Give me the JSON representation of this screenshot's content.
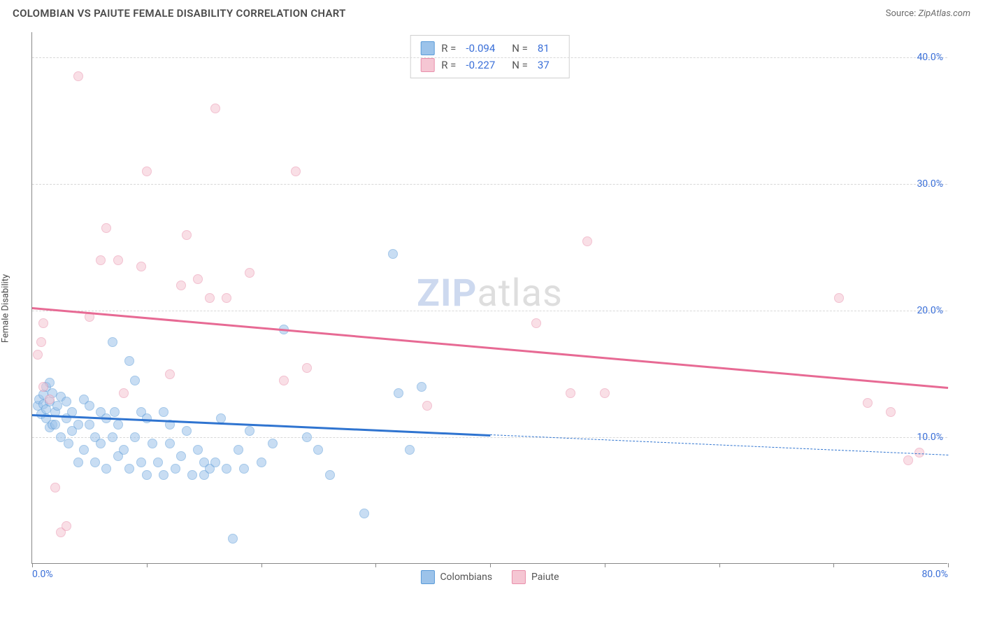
{
  "header": {
    "title": "COLOMBIAN VS PAIUTE FEMALE DISABILITY CORRELATION CHART",
    "source_label": "Source:",
    "source_value": "ZipAtlas.com"
  },
  "ylabel": "Female Disability",
  "watermark": {
    "zip": "ZIP",
    "atlas": "atlas"
  },
  "chart": {
    "type": "scatter",
    "xlim": [
      0,
      80
    ],
    "ylim": [
      0,
      42
    ],
    "x_ticks": [
      0,
      10,
      20,
      30,
      40,
      50,
      60,
      70,
      80
    ],
    "x_tick_labels": {
      "0": "0.0%",
      "80": "80.0%"
    },
    "y_gridlines": [
      10,
      20,
      30,
      40
    ],
    "y_tick_labels": {
      "10": "10.0%",
      "20": "20.0%",
      "30": "30.0%",
      "40": "40.0%"
    },
    "background_color": "#ffffff",
    "grid_color": "#d8d8d8",
    "axis_color": "#888888",
    "tick_label_color": "#3a6fd8"
  },
  "series": [
    {
      "id": "colombians",
      "label": "Colombians",
      "fill_color": "#9cc3ea",
      "stroke_color": "#5a9bd8",
      "fill_opacity": 0.55,
      "marker_radius": 7,
      "R": "-0.094",
      "N": "81",
      "trend": {
        "x1": 0,
        "y1": 11.8,
        "x2": 40,
        "y2": 10.2,
        "color": "#2f74d0",
        "width": 2.5,
        "dash_x2": 80,
        "dash_y2": 8.6
      },
      "points": [
        [
          0.5,
          12.5
        ],
        [
          0.6,
          13.0
        ],
        [
          0.8,
          11.8
        ],
        [
          1.0,
          12.6
        ],
        [
          1.0,
          13.4
        ],
        [
          1.2,
          11.5
        ],
        [
          1.2,
          12.2
        ],
        [
          1.2,
          14.0
        ],
        [
          1.5,
          10.8
        ],
        [
          1.5,
          12.8
        ],
        [
          1.8,
          11.0
        ],
        [
          1.8,
          13.5
        ],
        [
          2.0,
          12.0
        ],
        [
          2.0,
          11.0
        ],
        [
          2.2,
          12.5
        ],
        [
          2.5,
          10.0
        ],
        [
          2.5,
          13.2
        ],
        [
          3.0,
          11.5
        ],
        [
          3.0,
          12.8
        ],
        [
          3.2,
          9.5
        ],
        [
          3.5,
          10.5
        ],
        [
          3.5,
          12.0
        ],
        [
          4.0,
          11.0
        ],
        [
          4.0,
          8.0
        ],
        [
          4.5,
          13.0
        ],
        [
          4.5,
          9.0
        ],
        [
          5.0,
          12.5
        ],
        [
          5.0,
          11.0
        ],
        [
          5.5,
          10.0
        ],
        [
          5.5,
          8.0
        ],
        [
          6.0,
          12.0
        ],
        [
          6.0,
          9.5
        ],
        [
          6.5,
          11.5
        ],
        [
          6.5,
          7.5
        ],
        [
          7.0,
          10.0
        ],
        [
          7.0,
          17.5
        ],
        [
          7.2,
          12.0
        ],
        [
          7.5,
          8.5
        ],
        [
          7.5,
          11.0
        ],
        [
          8.0,
          9.0
        ],
        [
          8.5,
          16.0
        ],
        [
          8.5,
          7.5
        ],
        [
          9.0,
          14.5
        ],
        [
          9.0,
          10.0
        ],
        [
          9.5,
          8.0
        ],
        [
          9.5,
          12.0
        ],
        [
          10.0,
          7.0
        ],
        [
          10.0,
          11.5
        ],
        [
          10.5,
          9.5
        ],
        [
          11.0,
          8.0
        ],
        [
          11.5,
          12.0
        ],
        [
          11.5,
          7.0
        ],
        [
          12.0,
          9.5
        ],
        [
          12.0,
          11.0
        ],
        [
          12.5,
          7.5
        ],
        [
          13.0,
          8.5
        ],
        [
          13.5,
          10.5
        ],
        [
          14.0,
          7.0
        ],
        [
          14.5,
          9.0
        ],
        [
          15.0,
          8.0
        ],
        [
          15.0,
          7.0
        ],
        [
          15.5,
          7.5
        ],
        [
          16.0,
          8.0
        ],
        [
          16.5,
          11.5
        ],
        [
          17.0,
          7.5
        ],
        [
          17.5,
          2.0
        ],
        [
          18.0,
          9.0
        ],
        [
          18.5,
          7.5
        ],
        [
          19.0,
          10.5
        ],
        [
          20.0,
          8.0
        ],
        [
          21.0,
          9.5
        ],
        [
          22.0,
          18.5
        ],
        [
          24.0,
          10.0
        ],
        [
          25.0,
          9.0
        ],
        [
          26.0,
          7.0
        ],
        [
          29.0,
          4.0
        ],
        [
          31.5,
          24.5
        ],
        [
          32.0,
          13.5
        ],
        [
          33.0,
          9.0
        ],
        [
          34.0,
          14.0
        ],
        [
          1.5,
          14.3
        ]
      ]
    },
    {
      "id": "paiute",
      "label": "Paiute",
      "fill_color": "#f5c6d3",
      "stroke_color": "#e98fab",
      "fill_opacity": 0.55,
      "marker_radius": 7,
      "R": "-0.227",
      "N": "37",
      "trend": {
        "x1": 0,
        "y1": 20.3,
        "x2": 80,
        "y2": 14.0,
        "color": "#e76a94",
        "width": 2.5
      },
      "points": [
        [
          0.5,
          16.5
        ],
        [
          0.8,
          17.5
        ],
        [
          1.0,
          14.0
        ],
        [
          1.0,
          19.0
        ],
        [
          1.5,
          13.0
        ],
        [
          2.0,
          6.0
        ],
        [
          2.5,
          2.5
        ],
        [
          3.0,
          3.0
        ],
        [
          4.0,
          38.5
        ],
        [
          5.0,
          19.5
        ],
        [
          6.0,
          24.0
        ],
        [
          6.5,
          26.5
        ],
        [
          7.5,
          24.0
        ],
        [
          8.0,
          13.5
        ],
        [
          9.5,
          23.5
        ],
        [
          10.0,
          31.0
        ],
        [
          12.0,
          15.0
        ],
        [
          13.0,
          22.0
        ],
        [
          13.5,
          26.0
        ],
        [
          14.5,
          22.5
        ],
        [
          15.5,
          21.0
        ],
        [
          16.0,
          36.0
        ],
        [
          17.0,
          21.0
        ],
        [
          19.0,
          23.0
        ],
        [
          22.0,
          14.5
        ],
        [
          23.0,
          31.0
        ],
        [
          24.0,
          15.5
        ],
        [
          34.5,
          12.5
        ],
        [
          44.0,
          19.0
        ],
        [
          47.0,
          13.5
        ],
        [
          48.5,
          25.5
        ],
        [
          50.0,
          13.5
        ],
        [
          70.5,
          21.0
        ],
        [
          73.0,
          12.7
        ],
        [
          75.0,
          12.0
        ],
        [
          76.5,
          8.2
        ],
        [
          77.5,
          8.8
        ]
      ]
    }
  ],
  "legend_top": {
    "R_prefix": "R =",
    "N_prefix": "N ="
  },
  "legend_bottom": [
    {
      "label": "Colombians",
      "fill": "#9cc3ea",
      "stroke": "#5a9bd8"
    },
    {
      "label": "Paiute",
      "fill": "#f5c6d3",
      "stroke": "#e98fab"
    }
  ]
}
